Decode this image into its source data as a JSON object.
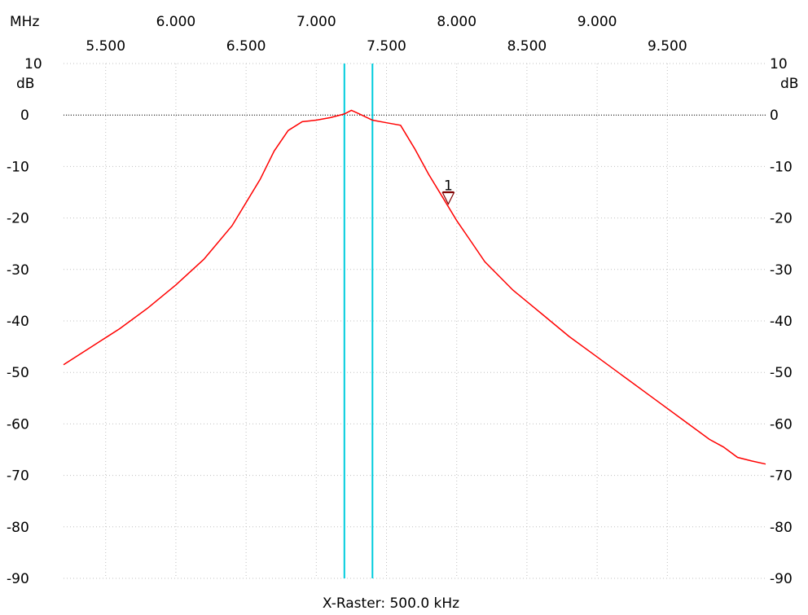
{
  "chart_data": {
    "type": "line",
    "x_unit_label": "MHz",
    "y_unit_label": "dB",
    "x_range": [
      5.2,
      10.2
    ],
    "y_range": [
      -90,
      10
    ],
    "x_ticks_top_row": [
      "6.000",
      "7.000",
      "8.000",
      "9.000"
    ],
    "x_tick_values_top_row": [
      6.0,
      7.0,
      8.0,
      9.0
    ],
    "x_ticks_bottom_row": [
      "5.500",
      "6.500",
      "7.500",
      "8.500",
      "9.500"
    ],
    "x_tick_values_bottom_row": [
      5.5,
      6.5,
      7.5,
      8.5,
      9.5
    ],
    "y_ticks": [
      "10",
      "0",
      "-10",
      "-20",
      "-30",
      "-40",
      "-50",
      "-60",
      "-70",
      "-80",
      "-90"
    ],
    "y_tick_values": [
      10,
      0,
      -10,
      -20,
      -30,
      -40,
      -50,
      -60,
      -70,
      -80,
      -90
    ],
    "grid": true,
    "reference_line_db": 0,
    "cursor_lines_mhz": [
      7.2,
      7.4
    ],
    "marker": {
      "label": "1",
      "x": 7.94,
      "y": -16.5
    },
    "footer_text": "X-Raster: 500.0 kHz",
    "colors": {
      "trace": "#ff0000",
      "cursor": "#00ccdd",
      "marker": "#800000",
      "grid": "#c0c0c0",
      "reference": "#000000"
    },
    "series": [
      {
        "x": [
          5.2,
          5.4,
          5.6,
          5.8,
          6.0,
          6.2,
          6.4,
          6.6,
          6.7,
          6.8,
          6.9,
          7.0,
          7.1,
          7.2,
          7.25,
          7.3,
          7.4,
          7.5,
          7.6,
          7.7,
          7.8,
          7.9,
          8.0,
          8.1,
          8.2,
          8.4,
          8.6,
          8.8,
          9.0,
          9.2,
          9.4,
          9.6,
          9.8,
          9.9,
          10.0,
          10.1,
          10.2
        ],
        "y": [
          -48.5,
          -45,
          -41.5,
          -37.5,
          -33,
          -28,
          -21.5,
          -12.5,
          -7,
          -3,
          -1.3,
          -1,
          -0.5,
          0.2,
          0.9,
          0.3,
          -1,
          -1.5,
          -2,
          -6.5,
          -11.5,
          -16,
          -20.5,
          -24.5,
          -28.5,
          -34,
          -38.5,
          -43,
          -47,
          -51,
          -55,
          -59,
          -63,
          -64.5,
          -66.5,
          -67.2,
          -67.8
        ]
      }
    ]
  }
}
